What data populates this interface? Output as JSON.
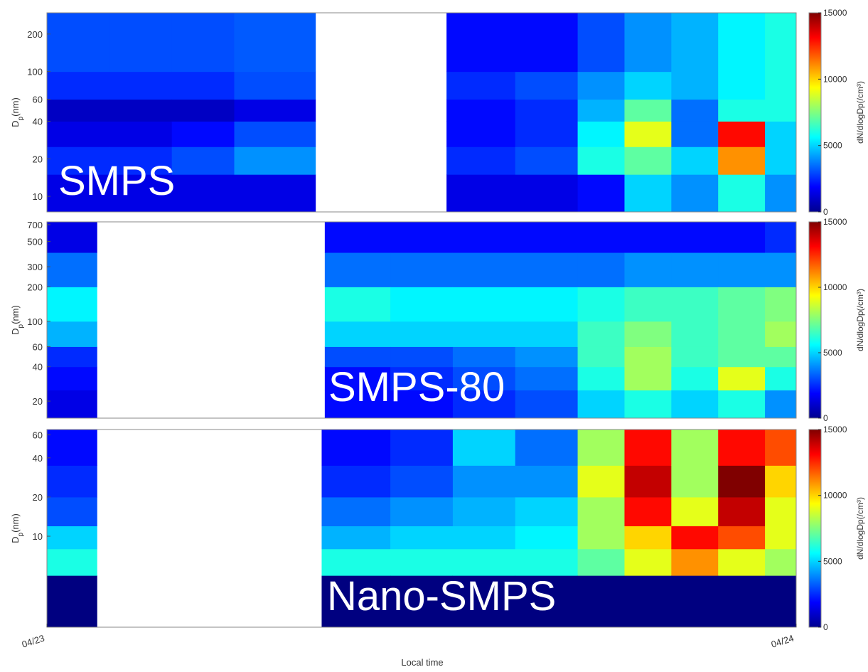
{
  "chart_data": [
    {
      "type": "heatmap",
      "label": "SMPS",
      "ylabel": {
        "main": "D",
        "sub": "p",
        "unit": "(nm)"
      },
      "xlim": [
        0,
        24
      ],
      "ylim": [
        7.5,
        296
      ],
      "log_y": true,
      "yticks": [
        10,
        20,
        40,
        60,
        100,
        200
      ],
      "x_edges": [
        0,
        2,
        4,
        6,
        8.6,
        12.8,
        15,
        17,
        18.5,
        20,
        21.5,
        23,
        24
      ],
      "y_edges": [
        7.5,
        15,
        25,
        40,
        60,
        100,
        296
      ],
      "values": [
        [
          1500,
          2500,
          1500,
          1000,
          2500,
          3000
        ],
        [
          1500,
          2500,
          1500,
          1000,
          2500,
          3000
        ],
        [
          1500,
          3000,
          2000,
          1000,
          2500,
          3000
        ],
        [
          1500,
          4000,
          3000,
          1500,
          3000,
          3200
        ],
        null,
        [
          1500,
          2500,
          2000,
          2000,
          2500,
          2000
        ],
        [
          1500,
          3000,
          2500,
          2500,
          3000,
          2000
        ],
        [
          2000,
          6000,
          5500,
          4500,
          4000,
          3000
        ],
        [
          5000,
          7000,
          9000,
          7000,
          5000,
          4000
        ],
        [
          4000,
          5000,
          3500,
          3500,
          4500,
          4500
        ],
        [
          6000,
          11000,
          13000,
          6000,
          5500,
          5500
        ],
        [
          4000,
          5000,
          5000,
          6000,
          6000,
          6000
        ]
      ],
      "clim": [
        0,
        15000
      ],
      "cticks": [
        0,
        5000,
        10000,
        15000
      ],
      "colorbar_label": "dN/dlogDp(/cm³)"
    },
    {
      "type": "heatmap",
      "label": "SMPS-80",
      "ylabel": {
        "main": "D",
        "sub": "p",
        "unit": "(nm)"
      },
      "xlim": [
        0,
        24
      ],
      "ylim": [
        14.2,
        741
      ],
      "log_y": true,
      "yticks": [
        20,
        40,
        60,
        100,
        200,
        300,
        500,
        700
      ],
      "x_edges": [
        0,
        1.6,
        8.9,
        11,
        13,
        15,
        17,
        18.5,
        20,
        21.5,
        23,
        24
      ],
      "y_edges": [
        14.2,
        25,
        40,
        60,
        100,
        200,
        400,
        741
      ],
      "values": [
        [
          1500,
          2000,
          2500,
          4500,
          5500,
          3500,
          1500
        ],
        null,
        [
          2000,
          2000,
          3000,
          5000,
          6000,
          3500,
          2000
        ],
        [
          2000,
          2500,
          3000,
          5000,
          5500,
          3500,
          2000
        ],
        [
          2500,
          3000,
          3500,
          5000,
          5500,
          3500,
          2000
        ],
        [
          3000,
          3500,
          4000,
          5000,
          5500,
          3500,
          2000
        ],
        [
          5000,
          6000,
          6500,
          6500,
          6000,
          3500,
          2000
        ],
        [
          6000,
          8000,
          8000,
          7500,
          6500,
          4000,
          2000
        ],
        [
          5000,
          6000,
          6500,
          6500,
          6500,
          4000,
          2000
        ],
        [
          6000,
          9000,
          7000,
          7000,
          7000,
          4000,
          2000
        ],
        [
          4000,
          6000,
          7000,
          8000,
          7500,
          4000,
          2500
        ]
      ],
      "clim": [
        0,
        15000
      ],
      "cticks": [
        0,
        5000,
        10000,
        15000
      ],
      "colorbar_label": "dN/dlogDp(/cm³)"
    },
    {
      "type": "heatmap",
      "label": "Nano-SMPS",
      "ylabel": {
        "main": "D",
        "sub": "p",
        "unit": "(nm)"
      },
      "xlim": [
        0,
        24
      ],
      "ylim": [
        2,
        66
      ],
      "log_y": true,
      "yticks": [
        10,
        20,
        40,
        60
      ],
      "xticks": [
        {
          "value": 0,
          "label": "04/23"
        },
        {
          "value": 24,
          "label": "04/24"
        }
      ],
      "xlabel": "Local time",
      "x_edges": [
        0,
        1.6,
        8.8,
        11,
        13,
        15,
        17,
        18.5,
        20,
        21.5,
        23,
        24
      ],
      "y_edges": [
        2,
        5,
        8,
        12,
        20,
        35,
        66
      ],
      "values": [
        [
          0,
          6000,
          5000,
          3000,
          2500,
          2000
        ],
        null,
        [
          0,
          6000,
          4500,
          3500,
          2500,
          2000
        ],
        [
          0,
          6000,
          5000,
          4000,
          3000,
          2500
        ],
        [
          0,
          6000,
          5000,
          4500,
          4000,
          5000
        ],
        [
          0,
          6000,
          5500,
          5000,
          4000,
          3500
        ],
        [
          0,
          7000,
          8000,
          8000,
          9000,
          8000
        ],
        [
          0,
          9000,
          10000,
          13000,
          14000,
          13000
        ],
        [
          0,
          11000,
          13000,
          9000,
          8000,
          8000
        ],
        [
          0,
          9000,
          12000,
          14000,
          15000,
          13000
        ],
        [
          0,
          8000,
          9000,
          9000,
          10000,
          12000
        ]
      ],
      "clim": [
        0,
        15000
      ],
      "cticks": [
        0,
        5000,
        10000,
        15000
      ],
      "colorbar_label": "dN/dlogDp(/cm³)"
    }
  ]
}
